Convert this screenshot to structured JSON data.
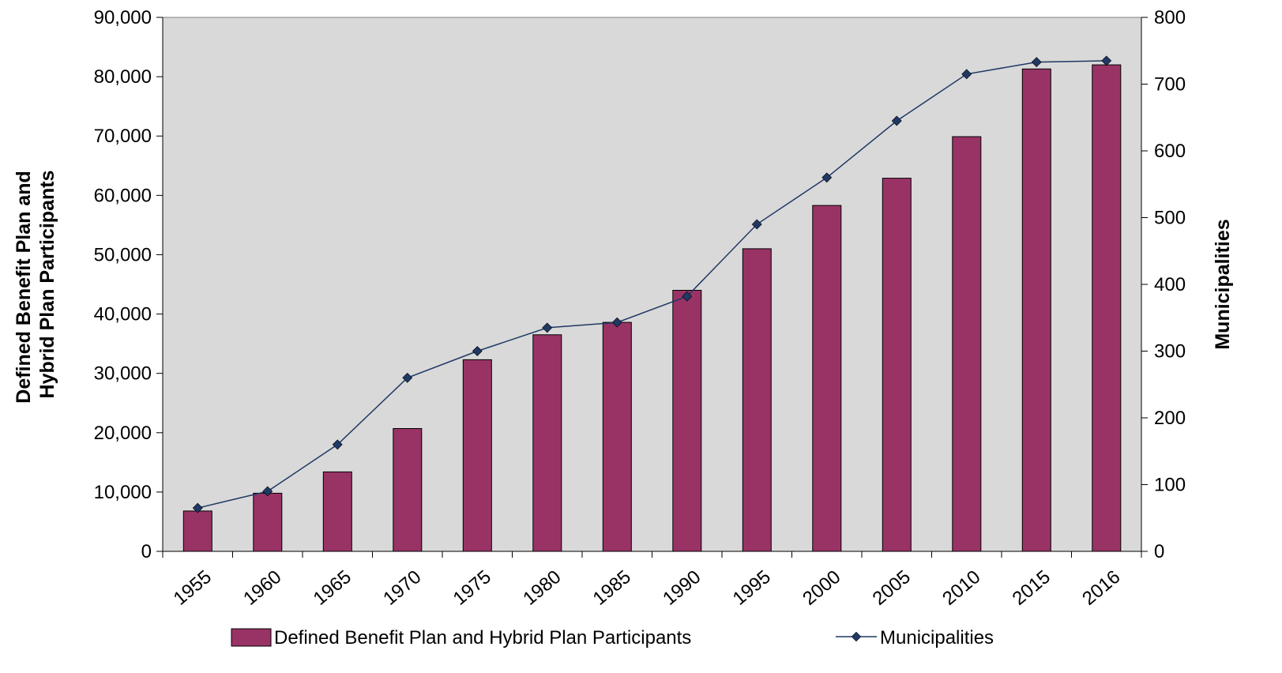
{
  "chart_data": {
    "type": "bar",
    "categories": [
      "1955",
      "1960",
      "1965",
      "1970",
      "1975",
      "1980",
      "1985",
      "1990",
      "1995",
      "2000",
      "2005",
      "2010",
      "2015",
      "2016"
    ],
    "series": [
      {
        "name": "Defined Benefit Plan and Hybrid Plan Participants",
        "type": "bar",
        "axis": "left",
        "color": "#993366",
        "values": [
          6800,
          9800,
          13400,
          20700,
          32300,
          36500,
          38600,
          44000,
          51000,
          58300,
          62900,
          69900,
          81300,
          82000
        ]
      },
      {
        "name": "Municipalities",
        "type": "line",
        "axis": "right",
        "color": "#1f3864",
        "values": [
          65,
          90,
          160,
          260,
          300,
          335,
          343,
          382,
          490,
          560,
          645,
          715,
          733,
          735
        ]
      }
    ],
    "y_left": {
      "label": "Defined Benefit Plan and Hybrid Plan Participants",
      "label_lines": [
        "Defined Benefit Plan and",
        "Hybrid Plan Participants"
      ],
      "ylim": [
        0,
        90000
      ],
      "ticks": [
        "0",
        "10,000",
        "20,000",
        "30,000",
        "40,000",
        "50,000",
        "60,000",
        "70,000",
        "80,000",
        "90,000"
      ]
    },
    "y_right": {
      "label": "Municipalities",
      "ylim": [
        0,
        800
      ],
      "ticks": [
        "0",
        "100",
        "200",
        "300",
        "400",
        "500",
        "600",
        "700",
        "800"
      ]
    },
    "plot_background": "#d9d9d9",
    "grid": false,
    "legend_position": "bottom"
  }
}
